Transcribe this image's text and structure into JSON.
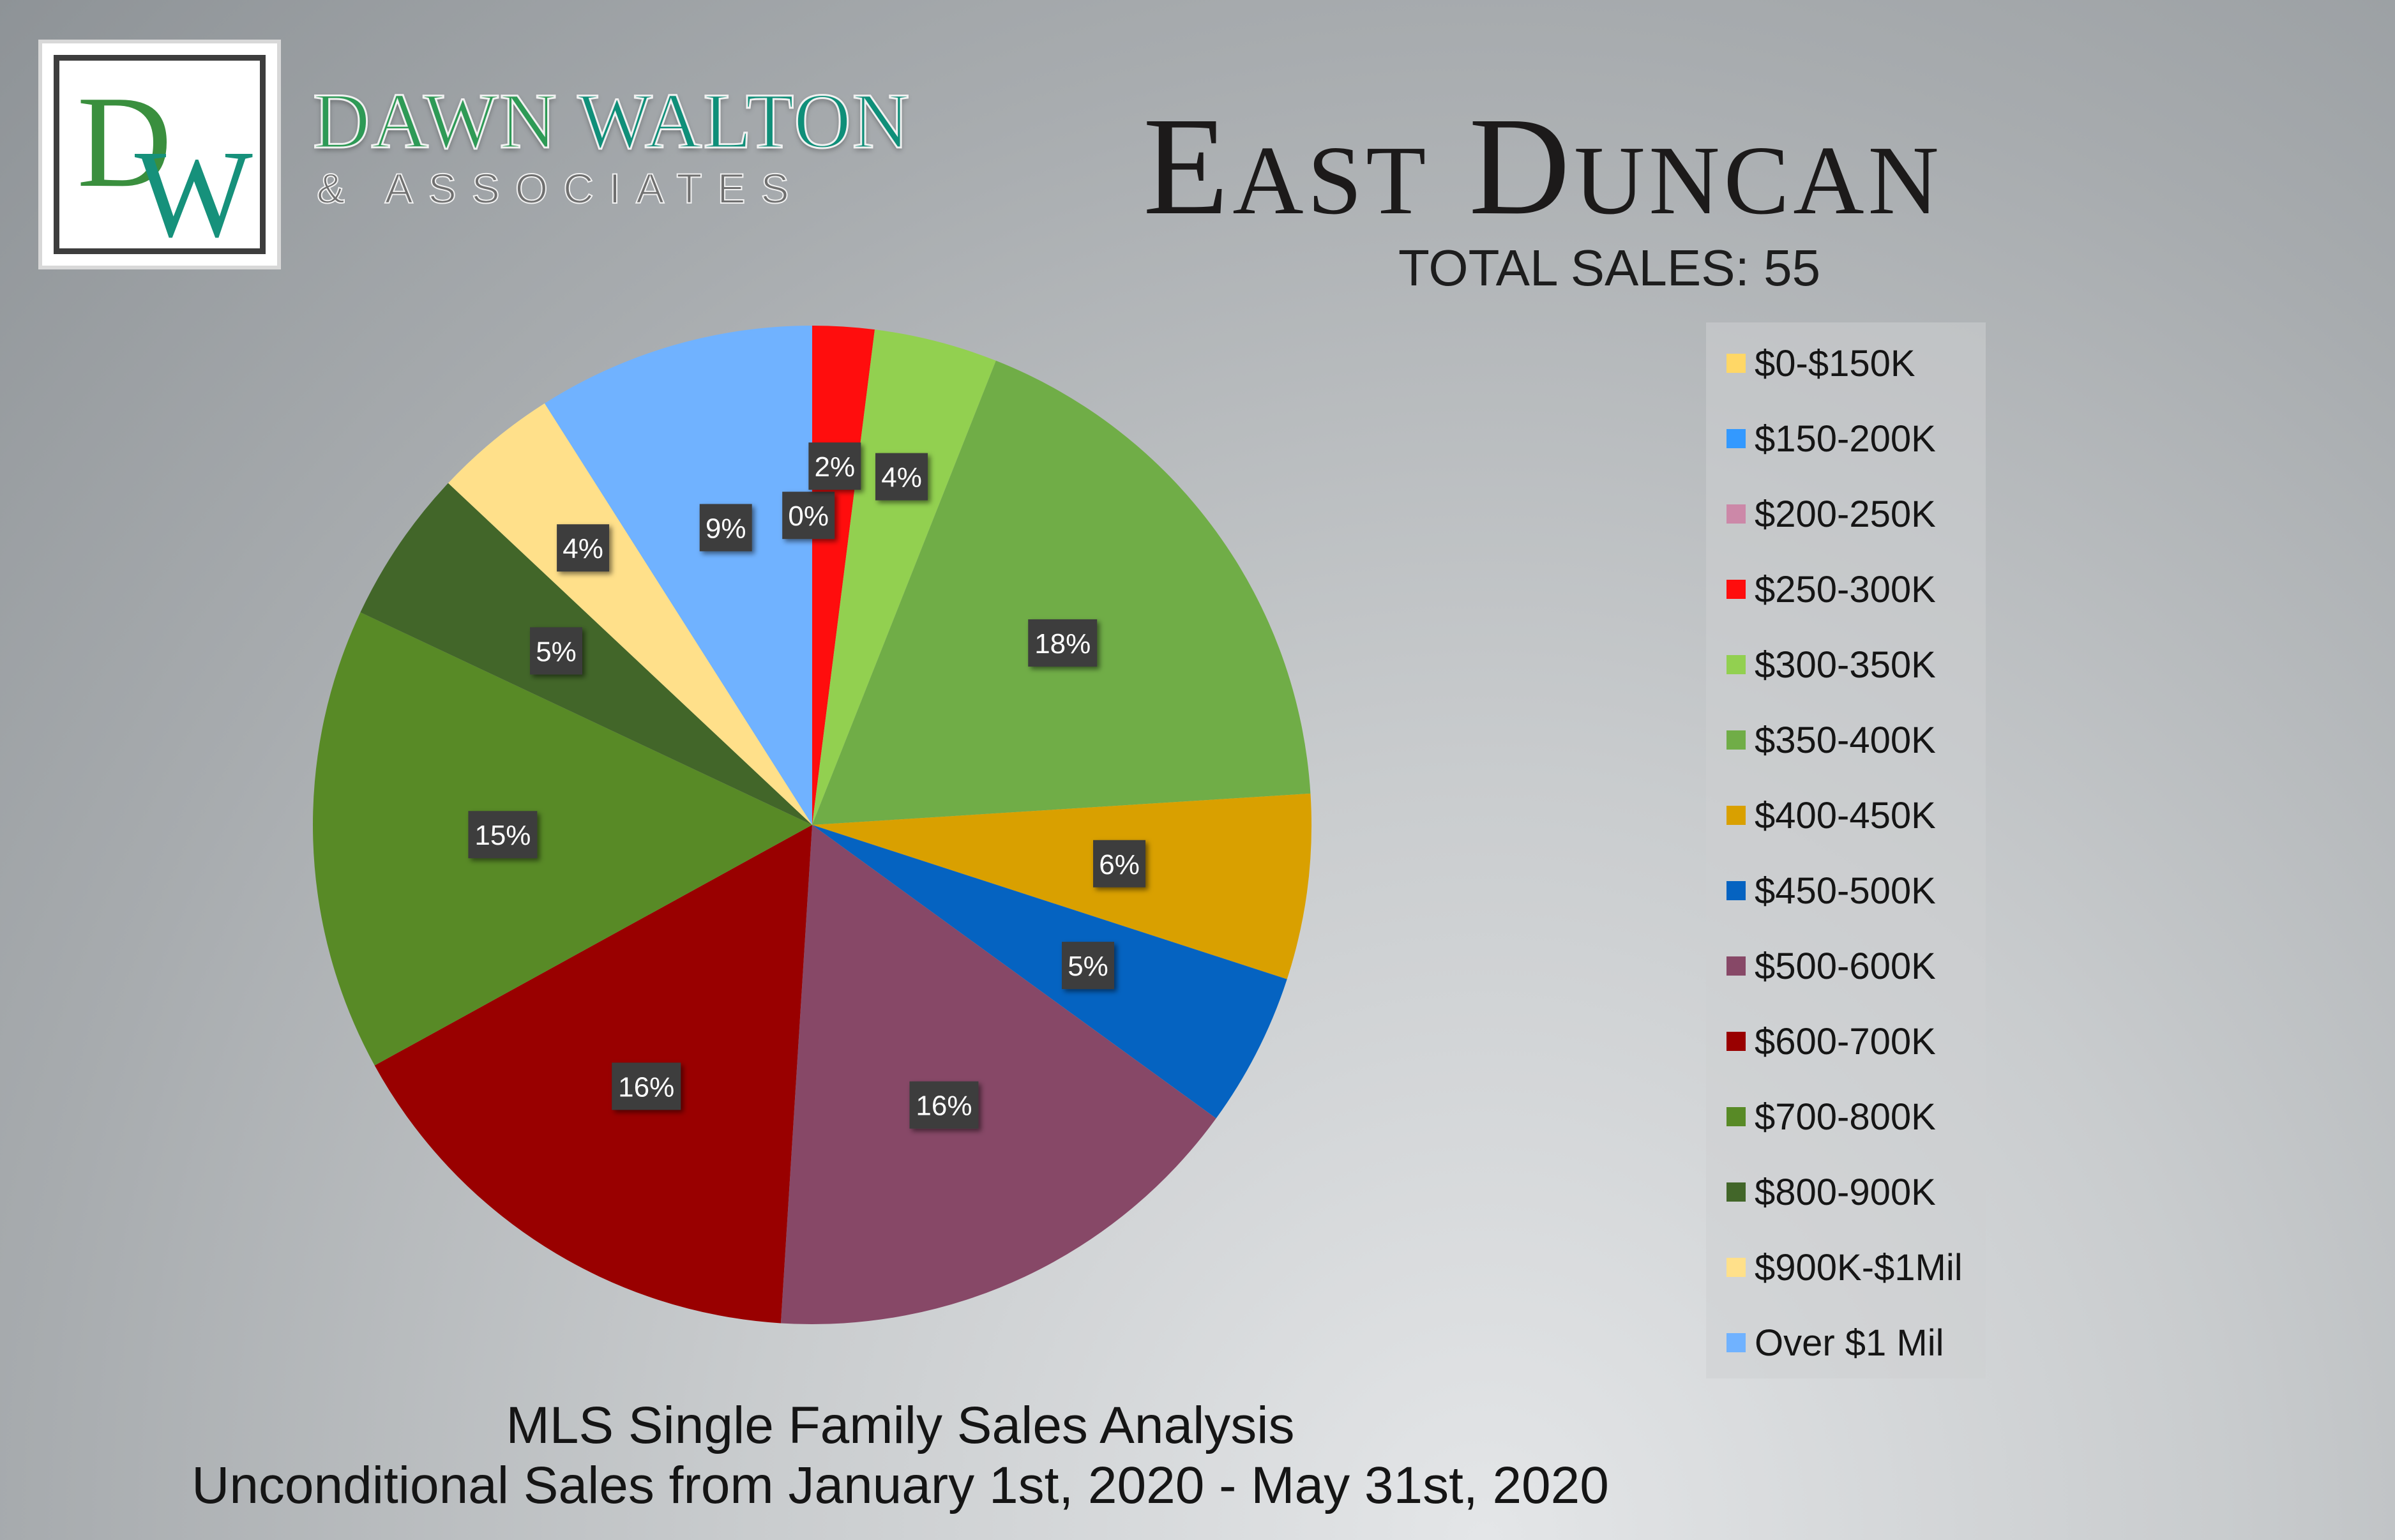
{
  "brand": {
    "monogram": "DW",
    "name_first": "DAWN",
    "name_second": "WALTON",
    "subtitle": "& ASSOCIATES"
  },
  "title": "East Duncan",
  "total_sales": "TOTAL SALES: 55",
  "footer": {
    "line1": "MLS Single Family Sales Analysis",
    "line2": "Unconditional Sales from January 1st, 2020 - May 31st, 2020"
  },
  "chart_data": {
    "type": "pie",
    "legend_position": "right",
    "slices": [
      {
        "label": "$0-$150K",
        "value": 0,
        "data_label": "0%",
        "color": "#ffd766"
      },
      {
        "label": "$150-200K",
        "value": 0,
        "data_label": "",
        "color": "#3399ff"
      },
      {
        "label": "$200-250K",
        "value": 0,
        "data_label": "",
        "color": "#cc88a8"
      },
      {
        "label": "$250-300K",
        "value": 2,
        "data_label": "2%",
        "color": "#ff0d0d"
      },
      {
        "label": "$300-350K",
        "value": 4,
        "data_label": "4%",
        "color": "#92d050"
      },
      {
        "label": "$350-400K",
        "value": 18,
        "data_label": "18%",
        "color": "#70ad47"
      },
      {
        "label": "$400-450K",
        "value": 6,
        "data_label": "6%",
        "color": "#d9a000"
      },
      {
        "label": "$450-500K",
        "value": 5,
        "data_label": "5%",
        "color": "#0563c1"
      },
      {
        "label": "$500-600K",
        "value": 16,
        "data_label": "16%",
        "color": "#874867"
      },
      {
        "label": "$600-700K",
        "value": 16,
        "data_label": "16%",
        "color": "#990000"
      },
      {
        "label": "$700-800K",
        "value": 15,
        "data_label": "15%",
        "color": "#588a26"
      },
      {
        "label": "$800-900K",
        "value": 5,
        "data_label": "5%",
        "color": "#426629"
      },
      {
        "label": "$900K-$1Mil",
        "value": 4,
        "data_label": "4%",
        "color": "#ffe08a"
      },
      {
        "label": "Over $1 Mil",
        "value": 9,
        "data_label": "9%",
        "color": "#70b2ff"
      }
    ]
  }
}
